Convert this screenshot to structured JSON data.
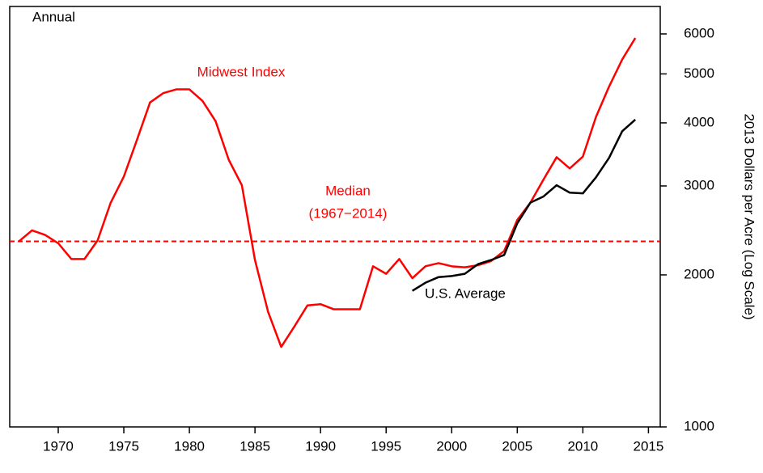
{
  "chart_data": {
    "type": "line",
    "annotations": {
      "period": "Annual",
      "midwest": "Midwest Index",
      "median_title": "Median",
      "median_range": "(1967−2014)",
      "us": "U.S. Average"
    },
    "y_label": "2013 Dollars per Acre (Log Scale)",
    "log_scale": true,
    "x": [
      1967,
      1968,
      1969,
      1970,
      1971,
      1972,
      1973,
      1974,
      1975,
      1976,
      1977,
      1978,
      1979,
      1980,
      1981,
      1982,
      1983,
      1984,
      1985,
      1986,
      1987,
      1988,
      1989,
      1990,
      1991,
      1992,
      1993,
      1994,
      1995,
      1996,
      1997,
      1998,
      1999,
      2000,
      2001,
      2002,
      2003,
      2004,
      2005,
      2006,
      2007,
      2008,
      2009,
      2010,
      2011,
      2012,
      2013,
      2014
    ],
    "series": [
      {
        "name": "Midwest Index",
        "color": "#ff0000",
        "values": [
          2330,
          2450,
          2400,
          2310,
          2150,
          2150,
          2340,
          2780,
          3130,
          3700,
          4390,
          4580,
          4660,
          4660,
          4420,
          4030,
          3380,
          3010,
          2140,
          1690,
          1440,
          1580,
          1740,
          1750,
          1710,
          1710,
          1710,
          2080,
          2010,
          2150,
          1970,
          2080,
          2110,
          2080,
          2070,
          2090,
          2130,
          2230,
          2570,
          2780,
          3090,
          3420,
          3250,
          3430,
          4110,
          4720,
          5340,
          5890
        ]
      },
      {
        "name": "U.S. Average",
        "color": "#000000",
        "values": [
          null,
          null,
          null,
          null,
          null,
          null,
          null,
          null,
          null,
          null,
          null,
          null,
          null,
          null,
          null,
          null,
          null,
          null,
          null,
          null,
          null,
          null,
          null,
          null,
          null,
          null,
          null,
          null,
          null,
          null,
          1860,
          1930,
          1980,
          1990,
          2010,
          2100,
          2140,
          2190,
          2530,
          2780,
          2860,
          3010,
          2910,
          2900,
          3120,
          3410,
          3850,
          4060
        ]
      }
    ],
    "median": 2330,
    "median_color": "#ff0000",
    "xlim": [
      1966.3,
      2015.9
    ],
    "ylim": [
      1000,
      6800
    ],
    "xticks": [
      1970,
      1975,
      1980,
      1985,
      1990,
      1995,
      2000,
      2005,
      2010,
      2015
    ],
    "yticks": [
      1000,
      2000,
      3000,
      4000,
      5000,
      6000
    ]
  }
}
